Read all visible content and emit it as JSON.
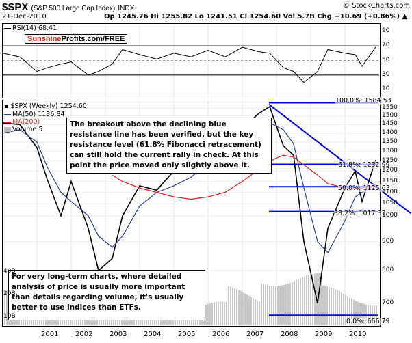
{
  "header": {
    "symbol": "$SPX",
    "name": "(S&P 500 Large Cap Index)",
    "exchange": "INDX",
    "date": "21-Dec-2010",
    "ohlc": "Op 1245.76  Hi 1255.82  Lo 1241.51  Cl 1254.60  Vol 5.7B  Chg +10.69 (+0.86%) ▲",
    "brand": "© StockCharts.com"
  },
  "rsi": {
    "label": "RSI(14) 68.41",
    "logo_red": "Sunshine",
    "logo_black": "Profits.com/FREE",
    "ticks": [
      "90",
      "70",
      "50",
      "30",
      "10"
    ]
  },
  "main": {
    "label": "$SPX (Weekly) 1254.60",
    "legend": [
      {
        "text": "MA(50) 1136.84",
        "color": "#2a3a9a"
      },
      {
        "text": "MA(200)",
        "color": "#d02020"
      },
      {
        "text": "Volume 5",
        "color": "#c0c0c0"
      }
    ],
    "fib_labels": [
      "100.0%: 1584.53",
      "61.8%: 1232.99",
      "50.0%: 1125.63",
      "38.2%: 1017.37",
      "0.0%: 666.79"
    ],
    "annotation_top": "The breakout above the declining blue resistance line has been verified, but the key resistance level (61.8% Fibonacci retracement) can still hold the current rally in check. At this point the price moved only slightly above it.",
    "annotation_bottom": "For very long-term charts, where detailed analysis of price is usually more important than details regarding volume, it's usually better to use indices than ETFs.",
    "y_ticks": [
      "1550",
      "1500",
      "1450",
      "1400",
      "1350",
      "1300",
      "1250",
      "1200",
      "1150",
      "1100",
      "1050",
      "1000",
      "900",
      "800",
      "700"
    ],
    "vol_ticks": [
      "40B",
      "20B",
      "10B"
    ]
  },
  "x_axis": [
    "2001",
    "2002",
    "2003",
    "2004",
    "2005",
    "2006",
    "2007",
    "2008",
    "2009",
    "2010"
  ],
  "chart_data": {
    "type": "line",
    "title": "$SPX (S&P 500 Large Cap Index) INDX",
    "xlabel": "",
    "ylabel": "",
    "x": [
      2000.0,
      2000.5,
      2001.0,
      2001.3,
      2001.7,
      2002.0,
      2002.5,
      2002.8,
      2003.2,
      2003.5,
      2004.0,
      2004.5,
      2005.0,
      2005.5,
      2006.0,
      2006.5,
      2007.0,
      2007.5,
      2007.8,
      2008.2,
      2008.5,
      2008.8,
      2009.2,
      2009.5,
      2010.0,
      2010.3,
      2010.5,
      2010.9
    ],
    "series": [
      {
        "name": "$SPX (Weekly)",
        "values": [
          1460,
          1450,
          1320,
          1160,
          1000,
          1150,
          950,
          800,
          840,
          1000,
          1130,
          1110,
          1200,
          1220,
          1280,
          1260,
          1430,
          1520,
          1560,
          1330,
          1280,
          900,
          700,
          950,
          1120,
          1200,
          1060,
          1254.6
        ]
      },
      {
        "name": "MA(50)",
        "values": [
          1400,
          1420,
          1350,
          1220,
          1100,
          1060,
          1000,
          920,
          880,
          920,
          1040,
          1100,
          1130,
          1170,
          1240,
          1260,
          1360,
          1420,
          1460,
          1420,
          1340,
          1120,
          900,
          860,
          980,
          1080,
          1100,
          1136.84
        ]
      },
      {
        "name": "MA(200)",
        "values": [
          null,
          null,
          null,
          null,
          null,
          null,
          null,
          null,
          1180,
          1150,
          1120,
          1100,
          1080,
          1070,
          1080,
          1100,
          1150,
          1210,
          1250,
          1280,
          1270,
          1230,
          1180,
          1140,
          1120,
          1120,
          1120,
          1130
        ]
      }
    ],
    "rsi": [
      60,
      55,
      35,
      40,
      45,
      48,
      30,
      35,
      45,
      65,
      58,
      52,
      60,
      55,
      64,
      55,
      68,
      62,
      60,
      40,
      35,
      20,
      35,
      65,
      60,
      58,
      42,
      68.41
    ],
    "fibonacci": {
      "100.0%": 1584.53,
      "61.8%": 1232.99,
      "50.0%": 1125.63,
      "38.2%": 1017.37,
      "0.0%": 666.79
    },
    "ylim": [
      640,
      1600
    ],
    "colors": {
      "price": "#000000",
      "ma50": "#2a3a9a",
      "ma200": "#d02020",
      "fib": "#0000ee",
      "volume": "#c8c8c8"
    }
  }
}
